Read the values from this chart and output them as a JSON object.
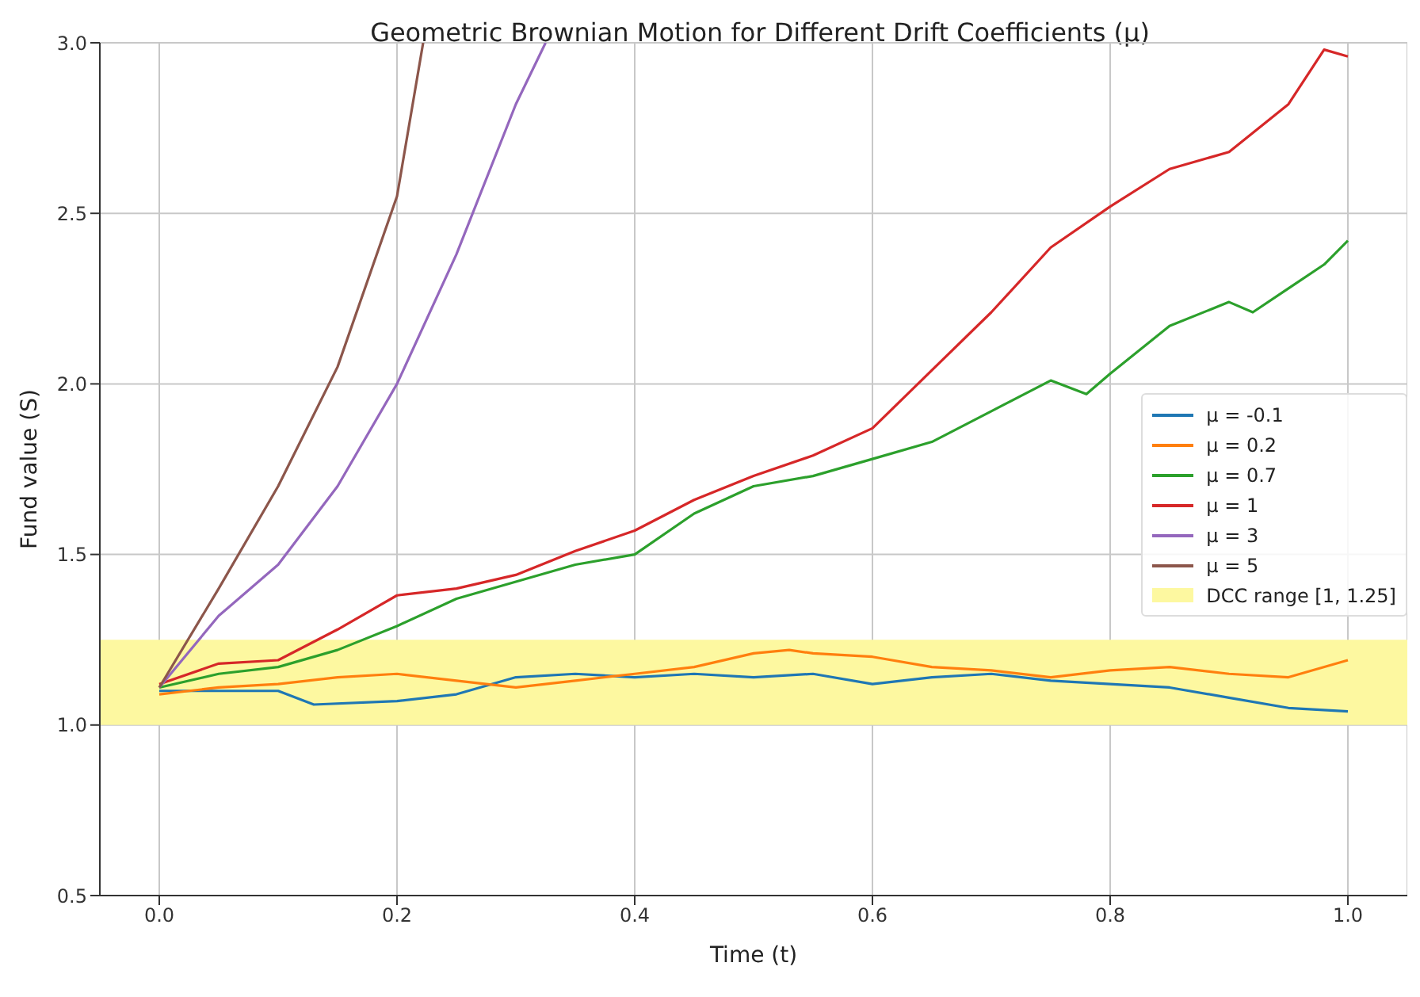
{
  "chart_data": {
    "type": "line",
    "title": "Geometric Brownian Motion for Different Drift Coefficients (μ)",
    "xlabel": "Time (t)",
    "ylabel": "Fund value (S)",
    "series": [
      {
        "name": "μ = -0.1",
        "color": "#1f77b4",
        "x": [
          0,
          0.05,
          0.1,
          0.13,
          0.2,
          0.25,
          0.3,
          0.35,
          0.4,
          0.45,
          0.5,
          0.55,
          0.6,
          0.65,
          0.7,
          0.75,
          0.8,
          0.85,
          0.9,
          0.95,
          1.0
        ],
        "values": [
          1.1,
          1.1,
          1.1,
          1.06,
          1.07,
          1.09,
          1.14,
          1.15,
          1.14,
          1.15,
          1.14,
          1.15,
          1.12,
          1.14,
          1.15,
          1.13,
          1.12,
          1.11,
          1.08,
          1.05,
          1.04
        ]
      },
      {
        "name": "μ = 0.2",
        "color": "#ff7f0e",
        "x": [
          0,
          0.05,
          0.1,
          0.15,
          0.2,
          0.25,
          0.3,
          0.35,
          0.4,
          0.45,
          0.5,
          0.53,
          0.55,
          0.6,
          0.65,
          0.7,
          0.75,
          0.8,
          0.85,
          0.9,
          0.95,
          1.0
        ],
        "values": [
          1.09,
          1.11,
          1.12,
          1.14,
          1.15,
          1.13,
          1.11,
          1.13,
          1.15,
          1.17,
          1.21,
          1.22,
          1.21,
          1.2,
          1.17,
          1.16,
          1.14,
          1.16,
          1.17,
          1.15,
          1.14,
          1.19
        ]
      },
      {
        "name": "μ = 0.7",
        "color": "#2ca02c",
        "x": [
          0,
          0.05,
          0.1,
          0.15,
          0.2,
          0.25,
          0.3,
          0.35,
          0.4,
          0.45,
          0.5,
          0.55,
          0.6,
          0.65,
          0.7,
          0.75,
          0.78,
          0.8,
          0.85,
          0.9,
          0.92,
          0.95,
          0.98,
          1.0
        ],
        "values": [
          1.11,
          1.15,
          1.17,
          1.22,
          1.29,
          1.37,
          1.42,
          1.47,
          1.5,
          1.62,
          1.7,
          1.73,
          1.78,
          1.83,
          1.92,
          2.01,
          1.97,
          2.03,
          2.17,
          2.24,
          2.21,
          2.28,
          2.35,
          2.42
        ]
      },
      {
        "name": "μ = 1",
        "color": "#d62728",
        "x": [
          0,
          0.05,
          0.1,
          0.15,
          0.2,
          0.25,
          0.3,
          0.35,
          0.4,
          0.45,
          0.5,
          0.55,
          0.6,
          0.65,
          0.7,
          0.75,
          0.8,
          0.85,
          0.9,
          0.95,
          0.98,
          1.0
        ],
        "values": [
          1.12,
          1.18,
          1.19,
          1.28,
          1.38,
          1.4,
          1.44,
          1.51,
          1.57,
          1.66,
          1.73,
          1.79,
          1.87,
          2.04,
          2.21,
          2.4,
          2.52,
          2.63,
          2.68,
          2.82,
          2.98,
          2.96
        ]
      },
      {
        "name": "μ = 3",
        "color": "#9467bd",
        "x": [
          0,
          0.05,
          0.1,
          0.15,
          0.2,
          0.25,
          0.3,
          0.325
        ],
        "values": [
          1.11,
          1.32,
          1.47,
          1.7,
          2.0,
          2.38,
          2.82,
          3.0
        ]
      },
      {
        "name": "μ = 5",
        "color": "#8c564b",
        "x": [
          0,
          0.05,
          0.1,
          0.15,
          0.2,
          0.222
        ],
        "values": [
          1.11,
          1.4,
          1.7,
          2.05,
          2.55,
          3.0
        ]
      }
    ],
    "bands": [
      {
        "axis": "y",
        "from": 1,
        "to": 1.25,
        "label": "DCC range [1, 1.25]",
        "color": "#fdf8a0"
      }
    ],
    "xlim": [
      -0.05,
      1.05
    ],
    "xticks": [
      {
        "value": 0,
        "label": "0.0"
      },
      0.2,
      0.4,
      0.6,
      0.8,
      {
        "value": 1,
        "label": "1.0"
      }
    ],
    "ylim": [
      0.5,
      3.0
    ],
    "yticks": [
      0.5,
      {
        "value": 1,
        "label": "1.0"
      },
      1.5,
      {
        "value": 2,
        "label": "2.0"
      },
      2.5,
      {
        "value": 3,
        "label": "3.0"
      }
    ],
    "grid": true,
    "legend": "right",
    "line_style": "solid",
    "marker": "none"
  }
}
